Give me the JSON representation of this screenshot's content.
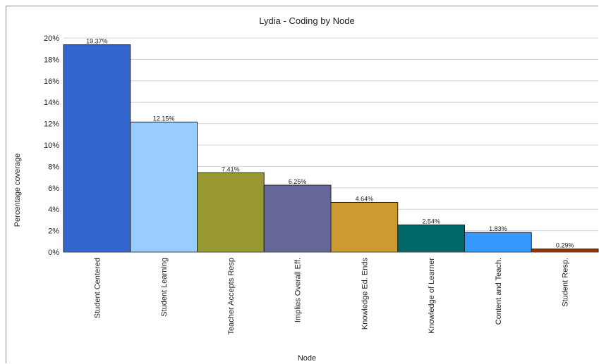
{
  "chart_data": {
    "type": "bar",
    "title": "Lydia - Coding by Node",
    "xlabel": "Node",
    "ylabel": "Percentage coverage",
    "ylim": [
      0,
      20
    ],
    "yticks": [
      0,
      2,
      4,
      6,
      8,
      10,
      12,
      14,
      16,
      18,
      20
    ],
    "ytick_suffix": "%",
    "grid": true,
    "legend": "none",
    "categories": [
      "Student Centered",
      "Student Learning",
      "Teacher Accepts Resp",
      "Implies Overall Eff.",
      "Knowledge Ed. Ends",
      "Knowledge of Learner",
      "Content and Teach.",
      "Student Resp."
    ],
    "values": [
      19.37,
      12.15,
      7.41,
      6.25,
      4.64,
      2.54,
      1.83,
      0.29
    ],
    "value_labels": [
      "19.37%",
      "12.15%",
      "7.41%",
      "6.25%",
      "4.64%",
      "2.54%",
      "1.83%",
      "0.29%"
    ],
    "colors": [
      "#3366cc",
      "#99ccff",
      "#999933",
      "#666699",
      "#cc9933",
      "#006666",
      "#3399ff",
      "#993300"
    ]
  }
}
